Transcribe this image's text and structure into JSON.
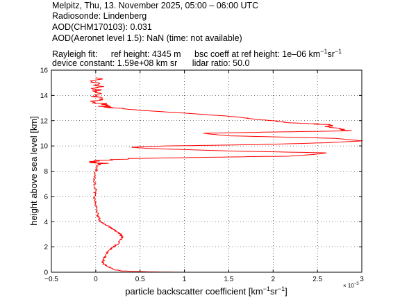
{
  "header": {
    "line1": "Melpitz, Thu, 13. November 2025, 05:00 – 06:00 UTC",
    "line2": "Radiosonde: Lindenberg",
    "line3": "AOD(CHM170103): 0.031",
    "line4": "AOD(Aeronet level 1.5): NaN   (time: not available)",
    "rayleigh_label": "Rayleigh fit:",
    "ref_height": "ref height: 4345 m",
    "bsc_coeff_prefix": "bsc coeff at ref height: 1e–06 km",
    "bsc_coeff_sup1": "−1",
    "bsc_coeff_mid": "sr",
    "bsc_coeff_sup2": "−1",
    "device_constant": "device constant: 1.59e+08 km sr",
    "lidar_ratio": "lidar ratio: 50.0"
  },
  "chart_data": {
    "type": "line",
    "xlabel_prefix": "particle backscatter coefficient [km",
    "xlabel_sup1": "−1",
    "xlabel_mid": "sr",
    "xlabel_sup2": "−1",
    "xlabel_suffix": "]",
    "ylabel": "height above sea level [km]",
    "x_multiplier": "× 10",
    "x_multiplier_exp": "−3",
    "xlim": [
      -0.5,
      3
    ],
    "ylim": [
      0,
      16
    ],
    "x_ticks": [
      "−0.5",
      "0",
      "0.5",
      "1",
      "1.5",
      "2",
      "2.5",
      "3"
    ],
    "x_tick_values": [
      -0.5,
      0,
      0.5,
      1,
      1.5,
      2,
      2.5,
      3
    ],
    "y_ticks": [
      "0",
      "2",
      "4",
      "6",
      "8",
      "10",
      "12",
      "14",
      "16"
    ],
    "y_tick_values": [
      0,
      2,
      4,
      6,
      8,
      10,
      12,
      14,
      16
    ],
    "grid": true,
    "line_color": "#ff0000",
    "series": [
      {
        "points": [
          [
            1.0,
            0.0
          ],
          [
            0.6,
            0.03
          ],
          [
            0.3,
            0.1
          ],
          [
            0.2,
            0.2
          ],
          [
            0.15,
            0.4
          ],
          [
            0.1,
            0.6
          ],
          [
            0.08,
            0.8
          ],
          [
            0.09,
            1.0
          ],
          [
            0.1,
            1.2
          ],
          [
            0.12,
            1.5
          ],
          [
            0.16,
            1.8
          ],
          [
            0.2,
            2.0
          ],
          [
            0.24,
            2.2
          ],
          [
            0.28,
            2.5
          ],
          [
            0.3,
            2.8
          ],
          [
            0.28,
            3.0
          ],
          [
            0.24,
            3.2
          ],
          [
            0.2,
            3.4
          ],
          [
            0.15,
            3.6
          ],
          [
            0.1,
            3.8
          ],
          [
            0.05,
            4.0
          ],
          [
            0.03,
            4.3
          ],
          [
            0.02,
            4.6
          ],
          [
            0.01,
            5.0
          ],
          [
            0.0,
            5.5
          ],
          [
            -0.02,
            6.0
          ],
          [
            0.0,
            6.5
          ],
          [
            -0.01,
            7.0
          ],
          [
            -0.02,
            7.5
          ],
          [
            0.0,
            8.0
          ],
          [
            0.02,
            8.4
          ],
          [
            0.03,
            8.7
          ],
          [
            0.1,
            8.9
          ],
          [
            0.4,
            9.0
          ],
          [
            1.2,
            9.1
          ],
          [
            2.2,
            9.2
          ],
          [
            2.5,
            9.35
          ],
          [
            2.6,
            9.45
          ],
          [
            1.5,
            9.6
          ],
          [
            0.6,
            9.8
          ],
          [
            0.4,
            9.9
          ],
          [
            0.8,
            10.0
          ],
          [
            1.8,
            10.1
          ],
          [
            2.6,
            10.25
          ],
          [
            3.0,
            10.4
          ],
          [
            2.7,
            10.6
          ],
          [
            1.5,
            10.8
          ],
          [
            1.2,
            11.0
          ],
          [
            2.0,
            11.1
          ],
          [
            2.9,
            11.2
          ],
          [
            2.6,
            11.5
          ],
          [
            2.6,
            11.7
          ],
          [
            2.3,
            11.8
          ],
          [
            2.0,
            12.0
          ],
          [
            1.8,
            12.1
          ],
          [
            1.6,
            12.3
          ],
          [
            1.0,
            12.6
          ],
          [
            0.3,
            12.9
          ],
          [
            0.1,
            13.1
          ],
          [
            0.05,
            13.4
          ],
          [
            0.0,
            13.8
          ],
          [
            0.02,
            14.2
          ],
          [
            0.0,
            14.6
          ],
          [
            0.02,
            15.0
          ],
          [
            0.0,
            15.4
          ]
        ]
      }
    ]
  }
}
